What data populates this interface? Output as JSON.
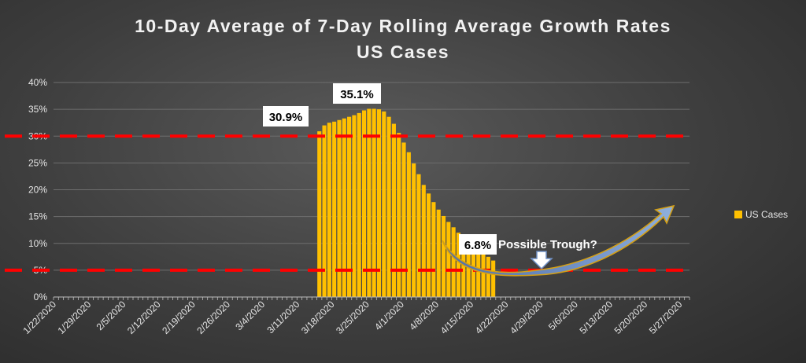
{
  "chart_data": {
    "type": "bar",
    "title": "10-Day Average of 7-Day Rolling Average Growth Rates",
    "subtitle": "US Cases",
    "ylim": [
      0,
      40
    ],
    "yticks": [
      "0%",
      "5%",
      "10%",
      "15%",
      "20%",
      "25%",
      "30%",
      "35%",
      "40%"
    ],
    "grid": true,
    "legend_position": "right",
    "x_start": "1/22/2020",
    "x_end": "5/28/2020",
    "xtick_labels": [
      "1/22/2020",
      "1/29/2020",
      "2/5/2020",
      "2/12/2020",
      "2/19/2020",
      "2/26/2020",
      "3/4/2020",
      "3/11/2020",
      "3/18/2020",
      "3/25/2020",
      "4/1/2020",
      "4/8/2020",
      "4/15/2020",
      "4/22/2020",
      "4/29/2020",
      "5/6/2020",
      "5/13/2020",
      "5/20/2020",
      "5/27/2020"
    ],
    "series": [
      {
        "name": "US Cases",
        "color": "#FFC000",
        "x": [
          "3/15/2020",
          "3/16/2020",
          "3/17/2020",
          "3/18/2020",
          "3/19/2020",
          "3/20/2020",
          "3/21/2020",
          "3/22/2020",
          "3/23/2020",
          "3/24/2020",
          "3/25/2020",
          "3/26/2020",
          "3/27/2020",
          "3/28/2020",
          "3/29/2020",
          "3/30/2020",
          "3/31/2020",
          "4/1/2020",
          "4/2/2020",
          "4/3/2020",
          "4/4/2020",
          "4/5/2020",
          "4/6/2020",
          "4/7/2020",
          "4/8/2020",
          "4/9/2020",
          "4/10/2020",
          "4/11/2020",
          "4/12/2020",
          "4/13/2020",
          "4/14/2020",
          "4/15/2020",
          "4/16/2020",
          "4/17/2020",
          "4/18/2020",
          "4/19/2020"
        ],
        "values": [
          30.9,
          32.0,
          32.5,
          32.7,
          33.0,
          33.3,
          33.6,
          33.9,
          34.3,
          34.8,
          35.1,
          35.1,
          35.0,
          34.6,
          33.6,
          32.3,
          30.6,
          28.8,
          27.0,
          24.9,
          22.9,
          20.9,
          19.3,
          17.7,
          16.3,
          15.1,
          14.0,
          13.0,
          12.0,
          11.2,
          10.4,
          9.6,
          8.9,
          8.2,
          7.5,
          6.8
        ]
      }
    ],
    "reference_lines": [
      {
        "y": 30,
        "color": "#FF0000",
        "style": "dashed"
      },
      {
        "y": 5,
        "color": "#FF0000",
        "style": "dashed"
      }
    ],
    "annotations": [
      {
        "text": "30.9%",
        "x": "3/15/2020",
        "value": 30.9
      },
      {
        "text": "35.1%",
        "x": "3/25/2020",
        "value": 35.1
      },
      {
        "text": "6.8%",
        "x": "4/19/2020",
        "value": 6.8
      },
      {
        "text": "Possible Trough?"
      }
    ]
  }
}
